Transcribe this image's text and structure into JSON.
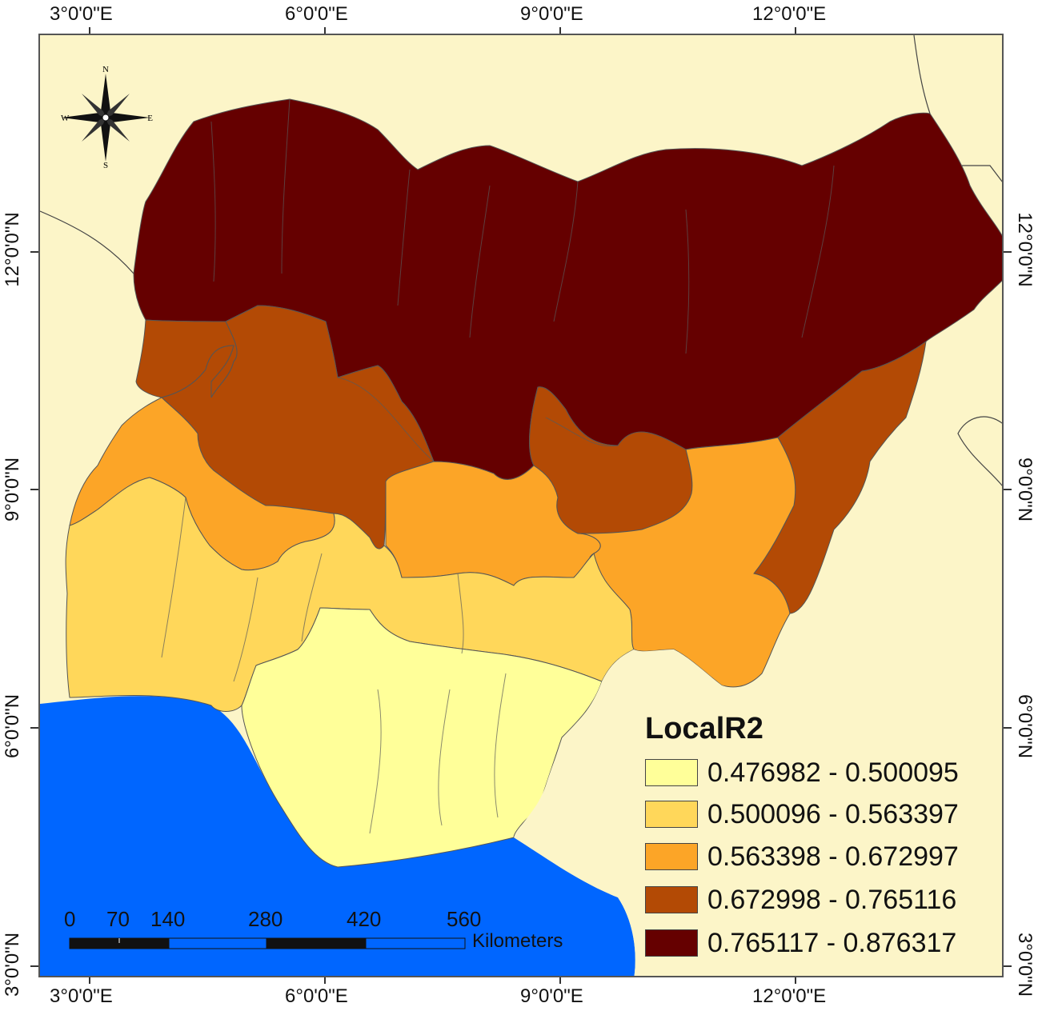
{
  "colors": {
    "ocean": "#0066ff",
    "land_background": "#fcf5c8",
    "neighbor_land": "#fcf5c8",
    "class1": "#ffff99",
    "class2": "#ffd75a",
    "class3": "#fca527",
    "class4": "#b34a05",
    "class5": "#650000"
  },
  "axes": {
    "top_labels": [
      "3°0'0\"E",
      "6°0'0\"E",
      "9°0'0\"E",
      "12°0'0\"E"
    ],
    "bottom_labels": [
      "3°0'0\"E",
      "6°0'0\"E",
      "9°0'0\"E",
      "12°0'0\"E"
    ],
    "left_labels": [
      "12°0'0\"N",
      "9°0'0\"N",
      "6°0'0\"N",
      "3°0'0\"N"
    ],
    "right_labels": [
      "12°0'0\"N",
      "9°0'0\"N",
      "6°0'0\"N",
      "3°0'0\"N"
    ]
  },
  "north_arrow": {
    "n": "N",
    "s": "S",
    "e": "E",
    "w": "W"
  },
  "legend": {
    "title": "LocalR2",
    "items": [
      {
        "label": "0.476982 - 0.500095",
        "color": "#ffff99"
      },
      {
        "label": "0.500096 - 0.563397",
        "color": "#ffd75a"
      },
      {
        "label": "0.563398 - 0.672997",
        "color": "#fca527"
      },
      {
        "label": "0.672998 - 0.765116",
        "color": "#b34a05"
      },
      {
        "label": "0.765117 - 0.876317",
        "color": "#650000"
      }
    ]
  },
  "scale_bar": {
    "ticks": [
      "0",
      "70",
      "140",
      "280",
      "420",
      "560"
    ],
    "unit": "Kilometers"
  }
}
